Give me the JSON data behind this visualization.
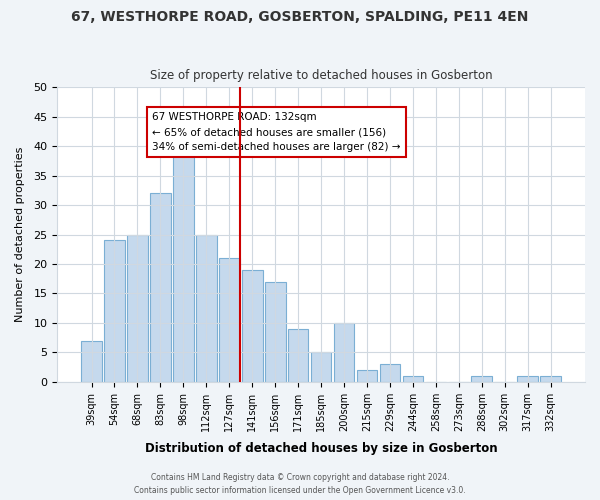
{
  "title": "67, WESTHORPE ROAD, GOSBERTON, SPALDING, PE11 4EN",
  "subtitle": "Size of property relative to detached houses in Gosberton",
  "xlabel": "Distribution of detached houses by size in Gosberton",
  "ylabel": "Number of detached properties",
  "bar_labels": [
    "39sqm",
    "54sqm",
    "68sqm",
    "83sqm",
    "98sqm",
    "112sqm",
    "127sqm",
    "141sqm",
    "156sqm",
    "171sqm",
    "185sqm",
    "200sqm",
    "215sqm",
    "229sqm",
    "244sqm",
    "258sqm",
    "273sqm",
    "288sqm",
    "302sqm",
    "317sqm",
    "332sqm"
  ],
  "bar_values": [
    7,
    24,
    25,
    32,
    39,
    25,
    21,
    19,
    17,
    9,
    5,
    10,
    2,
    3,
    1,
    0,
    0,
    1,
    0,
    1,
    1
  ],
  "bar_color": "#c5d9ed",
  "bar_edge_color": "#7bafd4",
  "vline_x": 6,
  "vline_color": "#cc0000",
  "annotation_title": "67 WESTHORPE ROAD: 132sqm",
  "annotation_line1": "← 65% of detached houses are smaller (156)",
  "annotation_line2": "34% of semi-detached houses are larger (82) →",
  "annotation_box_color": "#ffffff",
  "annotation_box_edge_color": "#cc0000",
  "ylim": [
    0,
    50
  ],
  "yticks": [
    0,
    5,
    10,
    15,
    20,
    25,
    30,
    35,
    40,
    45,
    50
  ],
  "footer_line1": "Contains HM Land Registry data © Crown copyright and database right 2024.",
  "footer_line2": "Contains public sector information licensed under the Open Government Licence v3.0.",
  "bg_color": "#f0f4f8",
  "plot_bg_color": "#ffffff",
  "grid_color": "#d0d8e0"
}
